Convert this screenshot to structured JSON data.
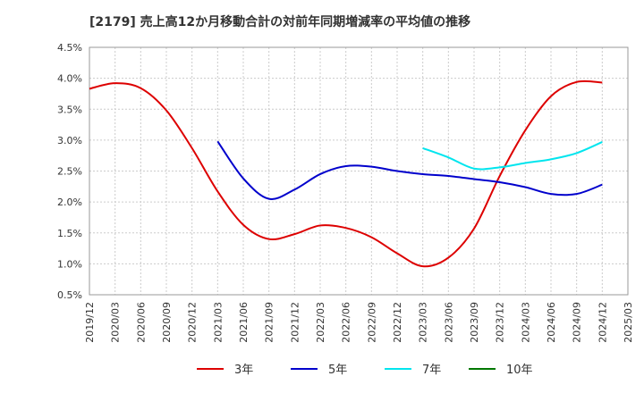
{
  "title": "[2179]  売上高12か月移動合計の対前年同期増減率の平均値の推移",
  "chart_data": {
    "type": "line",
    "title": "[2179]  売上高12か月移動合計の対前年同期増減率の平均値の推移",
    "xlabel": "",
    "ylabel": "",
    "x_ticks": [
      "2019/12",
      "2020/03",
      "2020/06",
      "2020/09",
      "2020/12",
      "2021/03",
      "2021/06",
      "2021/09",
      "2021/12",
      "2022/03",
      "2022/06",
      "2022/09",
      "2022/12",
      "2023/03",
      "2023/06",
      "2023/09",
      "2023/12",
      "2024/03",
      "2024/06",
      "2024/09",
      "2024/12",
      "2025/03"
    ],
    "y_ticks": [
      "0.5%",
      "1.0%",
      "1.5%",
      "2.0%",
      "2.5%",
      "3.0%",
      "3.5%",
      "4.0%",
      "4.5%"
    ],
    "ylim": [
      0.5,
      4.5
    ],
    "grid": true,
    "legend_position": "bottom",
    "series": [
      {
        "name": "3年",
        "color": "#dd0000",
        "x": [
          "2019/12",
          "2020/03",
          "2020/06",
          "2020/09",
          "2020/12",
          "2021/03",
          "2021/06",
          "2021/09",
          "2021/12",
          "2022/03",
          "2022/06",
          "2022/09",
          "2022/12",
          "2023/03",
          "2023/06",
          "2023/09",
          "2023/12",
          "2024/03",
          "2024/06",
          "2024/09",
          "2024/12"
        ],
        "values": [
          3.83,
          3.92,
          3.84,
          3.48,
          2.87,
          2.17,
          1.63,
          1.4,
          1.48,
          1.62,
          1.58,
          1.43,
          1.17,
          0.96,
          1.1,
          1.57,
          2.42,
          3.16,
          3.71,
          3.94,
          3.93
        ]
      },
      {
        "name": "5年",
        "color": "#0000cc",
        "x": [
          "2021/03",
          "2021/06",
          "2021/09",
          "2021/12",
          "2022/03",
          "2022/06",
          "2022/09",
          "2022/12",
          "2023/03",
          "2023/06",
          "2023/09",
          "2023/12",
          "2024/03",
          "2024/06",
          "2024/09",
          "2024/12"
        ],
        "values": [
          2.98,
          2.38,
          2.05,
          2.2,
          2.45,
          2.58,
          2.57,
          2.5,
          2.45,
          2.42,
          2.37,
          2.32,
          2.24,
          2.13,
          2.13,
          2.28
        ]
      },
      {
        "name": "7年",
        "color": "#00e5ee",
        "x": [
          "2023/03",
          "2023/06",
          "2023/09",
          "2023/12",
          "2024/03",
          "2024/06",
          "2024/09",
          "2024/12"
        ],
        "values": [
          2.87,
          2.72,
          2.54,
          2.56,
          2.63,
          2.69,
          2.79,
          2.97
        ]
      },
      {
        "name": "10年",
        "color": "#007700",
        "x": [],
        "values": []
      }
    ]
  }
}
